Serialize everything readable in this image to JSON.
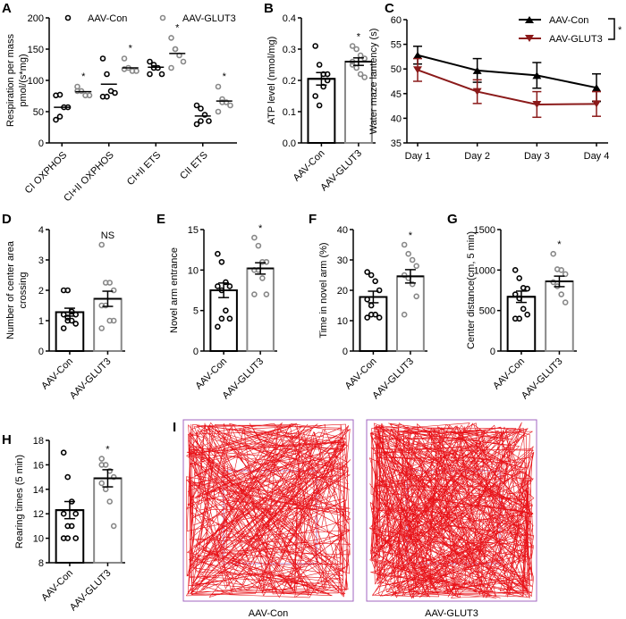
{
  "colors": {
    "con": "#000000",
    "glut3": "#888888",
    "glut3_line": "#8b1a1a",
    "track": "#e8141a",
    "arena": "#a066c0"
  },
  "chart_data": [
    {
      "panel": "A",
      "type": "scatter",
      "ylabel": "Respiration per mass pmol/(s*mg)",
      "ylim": [
        0,
        200
      ],
      "yticks": [
        0,
        50,
        100,
        150,
        200
      ],
      "categories": [
        "CI OXPHOS",
        "CI+II OXPHOS",
        "CI+II ETS",
        "CII ETS"
      ],
      "legend": [
        "AAV-Con",
        "AAV-GLUT3"
      ],
      "series": [
        {
          "name": "AAV-Con",
          "means": [
            57,
            94,
            121,
            43
          ],
          "points": [
            [
              76,
              77,
              57,
              57,
              37,
              42
            ],
            [
              135,
              110,
              83,
              80,
              74,
              74
            ],
            [
              130,
              125,
              120,
              110,
              110,
              120
            ],
            [
              60,
              55,
              45,
              35,
              30,
              35
            ]
          ]
        },
        {
          "name": "AAV-GLUT3",
          "means": [
            82,
            120,
            143,
            67
          ],
          "points": [
            [
              83,
              83,
              76,
              76,
              90
            ],
            [
              135,
              120,
              115,
              115,
              118
            ],
            [
              168,
              150,
              140,
              130,
              120,
              150
            ],
            [
              90,
              70,
              65,
              60,
              50,
              65
            ]
          ]
        }
      ],
      "annotations": [
        "*",
        "*",
        "*",
        "*"
      ]
    },
    {
      "panel": "B",
      "type": "bar",
      "ylabel": "ATP level (nmol/mg)",
      "ylim": [
        0,
        0.4
      ],
      "yticks": [
        "0.0",
        "0.1",
        "0.2",
        "0.3",
        "0.4"
      ],
      "categories": [
        "AAV-Con",
        "AAV-GLUT3"
      ],
      "values": [
        0.205,
        0.26
      ],
      "sem": [
        0.02,
        0.012
      ],
      "points": [
        [
          0.31,
          0.25,
          0.22,
          0.2,
          0.15,
          0.12,
          0.18,
          0.22
        ],
        [
          0.31,
          0.3,
          0.28,
          0.27,
          0.25,
          0.24,
          0.22,
          0.21,
          0.26
        ]
      ],
      "annotation": "*"
    },
    {
      "panel": "C",
      "type": "line",
      "ylabel": "Water maze lantency (s)",
      "ylim": [
        35,
        60
      ],
      "yticks": [
        35,
        40,
        45,
        50,
        55,
        60
      ],
      "categories": [
        "Day 1",
        "Day 2",
        "Day 3",
        "Day 4"
      ],
      "series": [
        {
          "name": "AAV-Con",
          "values": [
            52.8,
            49.7,
            48.7,
            46.2
          ],
          "sem": [
            1.8,
            2.4,
            2.6,
            2.8
          ]
        },
        {
          "name": "AAV-GLUT3",
          "values": [
            49.8,
            45.4,
            42.8,
            42.9
          ],
          "sem": [
            2.3,
            2.4,
            2.6,
            2.5
          ]
        }
      ],
      "annotation": "*"
    },
    {
      "panel": "D",
      "type": "bar",
      "ylabel": "Number of center area crossing",
      "ylim": [
        0,
        4
      ],
      "yticks": [
        0,
        1,
        2,
        3,
        4
      ],
      "categories": [
        "AAV-Con",
        "AAV-GLUT3"
      ],
      "values": [
        1.28,
        1.72
      ],
      "sem": [
        0.13,
        0.25
      ],
      "points": [
        [
          2,
          2,
          1.3,
          1.2,
          1.2,
          1.1,
          1,
          0.9,
          0.75,
          1
        ],
        [
          3.5,
          2.25,
          2.25,
          2,
          1.5,
          1.5,
          1,
          1,
          0.75
        ]
      ],
      "annotation": "NS"
    },
    {
      "panel": "E",
      "type": "bar",
      "ylabel": "Novel arm entrance",
      "ylim": [
        0,
        15
      ],
      "yticks": [
        0,
        5,
        10,
        15
      ],
      "categories": [
        "AAV-Con",
        "AAV-GLUT3"
      ],
      "values": [
        7.5,
        10.2
      ],
      "sem": [
        0.9,
        0.7
      ],
      "points": [
        [
          12,
          11,
          8.5,
          8,
          8,
          7.5,
          5,
          4,
          3,
          4
        ],
        [
          14,
          13,
          11,
          11,
          10,
          10,
          9,
          7,
          7
        ]
      ],
      "annotation": "*"
    },
    {
      "panel": "F",
      "type": "bar",
      "ylabel": "Time in novel arm (%)",
      "ylim": [
        0,
        40
      ],
      "yticks": [
        0,
        10,
        20,
        30,
        40
      ],
      "categories": [
        "AAV-Con",
        "AAV-GLUT3"
      ],
      "values": [
        17.8,
        24.6
      ],
      "sem": [
        1.9,
        2.2
      ],
      "points": [
        [
          26,
          25,
          23,
          20,
          17,
          15,
          12,
          11,
          11,
          12
        ],
        [
          35,
          32,
          30,
          28,
          25,
          24,
          22,
          18,
          12
        ]
      ],
      "annotation": "*"
    },
    {
      "panel": "G",
      "type": "bar",
      "ylabel": "Center distance(cm, 5 min)",
      "ylim": [
        0,
        1500
      ],
      "yticks": [
        0,
        500,
        1000,
        1500
      ],
      "categories": [
        "AAV-Con",
        "AAV-GLUT3"
      ],
      "values": [
        670,
        860
      ],
      "sem": [
        70,
        65
      ],
      "points": [
        [
          1000,
          900,
          780,
          770,
          700,
          650,
          520,
          450,
          400,
          400
        ],
        [
          1200,
          1010,
          1000,
          950,
          850,
          800,
          700,
          600
        ]
      ],
      "annotation": "*"
    },
    {
      "panel": "H",
      "type": "bar",
      "ylabel": "Rearing times (5 min)",
      "ylim": [
        8,
        18
      ],
      "yticks": [
        8,
        10,
        12,
        14,
        16,
        18
      ],
      "categories": [
        "AAV-Con",
        "AAV-GLUT3"
      ],
      "values": [
        12.3,
        14.9
      ],
      "sem": [
        0.7,
        0.7
      ],
      "points": [
        [
          17,
          15,
          13,
          12,
          12,
          11,
          11,
          10,
          10,
          10
        ],
        [
          16,
          16,
          15.5,
          15,
          14.5,
          14,
          13,
          11,
          16.5
        ]
      ],
      "annotation": "*"
    }
  ],
  "panel_I": {
    "label": "I",
    "images": [
      "AAV-Con",
      "AAV-GLUT3"
    ]
  }
}
